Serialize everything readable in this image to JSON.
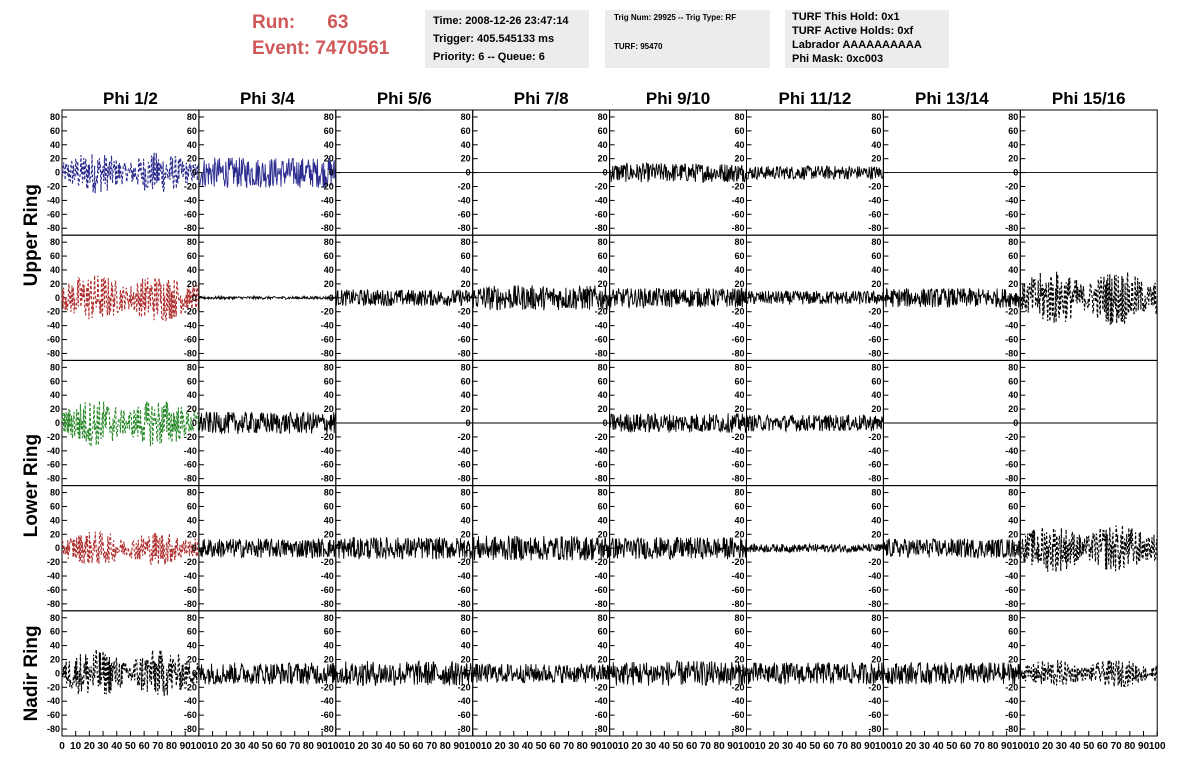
{
  "header": {
    "run_label": "Run:",
    "run_value": "63",
    "event_label": "Event:",
    "event_value": "7470561"
  },
  "info_time": [
    "Time: 2008-12-26 23:47:14",
    "Trigger: 405.545133 ms",
    "Priority: 6 -- Queue: 6"
  ],
  "info_trig": [
    "Trig Num: 29925 -- Trig Type: RF",
    "TURF: 95470"
  ],
  "info_turf": [
    "TURF This Hold: 0x1",
    "TURF Active Holds: 0xf",
    "Labrador AAAAAAAAAA",
    "Phi Mask: 0xc003"
  ],
  "colors": {
    "blue": "#2b2b8f",
    "red": "#b03030",
    "green": "#2a8a2a",
    "black": "#000000",
    "title_red": "#d05858",
    "info_bg": "#ececec"
  },
  "chart_data": {
    "type": "line",
    "column_titles": [
      "Phi 1/2",
      "Phi 3/4",
      "Phi 5/6",
      "Phi 7/8",
      "Phi 9/10",
      "Phi 11/12",
      "Phi 13/14",
      "Phi 15/16"
    ],
    "row_titles": [
      "Upper Ring",
      "Lower Ring",
      "Nadir Ring"
    ],
    "ylim": [
      -90,
      90
    ],
    "xlim": [
      0,
      100
    ],
    "yticks": [
      -80,
      -60,
      -40,
      -20,
      0,
      20,
      40,
      60,
      80
    ],
    "ytick_labels": [
      "-80",
      "-60",
      "-40",
      "-20",
      "0",
      "20",
      "40",
      "60",
      "80"
    ],
    "xtick_first_labels": [
      "0",
      "10",
      "20",
      "30",
      "40",
      "50",
      "60",
      "70",
      "80",
      "90",
      "100"
    ],
    "xtick_labels": [
      "10",
      "20",
      "30",
      "40",
      "50",
      "60",
      "70",
      "80",
      "90",
      "100"
    ],
    "panels": [
      [
        {
          "color": "blue",
          "dashed": true,
          "amp": 30
        },
        {
          "color": "blue",
          "dashed": false,
          "amp": 22
        },
        {
          "color": "black",
          "dashed": false,
          "amp": 0
        },
        {
          "color": "black",
          "dashed": false,
          "amp": 0
        },
        {
          "color": "black",
          "dashed": false,
          "amp": 14
        },
        {
          "color": "black",
          "dashed": false,
          "amp": 10
        },
        {
          "color": "black",
          "dashed": false,
          "amp": 0
        },
        {
          "color": "black",
          "dashed": false,
          "amp": 0
        }
      ],
      [
        {
          "color": "red",
          "dashed": true,
          "amp": 35
        },
        {
          "color": "black",
          "dashed": false,
          "amp": 2
        },
        {
          "color": "black",
          "dashed": false,
          "amp": 12
        },
        {
          "color": "black",
          "dashed": false,
          "amp": 18
        },
        {
          "color": "black",
          "dashed": false,
          "amp": 14
        },
        {
          "color": "black",
          "dashed": false,
          "amp": 10
        },
        {
          "color": "black",
          "dashed": false,
          "amp": 14
        },
        {
          "color": "black",
          "dashed": true,
          "amp": 40
        }
      ],
      [
        {
          "color": "green",
          "dashed": true,
          "amp": 35
        },
        {
          "color": "black",
          "dashed": false,
          "amp": 16
        },
        {
          "color": "black",
          "dashed": false,
          "amp": 0
        },
        {
          "color": "black",
          "dashed": false,
          "amp": 0
        },
        {
          "color": "black",
          "dashed": false,
          "amp": 14
        },
        {
          "color": "black",
          "dashed": false,
          "amp": 12
        },
        {
          "color": "black",
          "dashed": false,
          "amp": 0
        },
        {
          "color": "black",
          "dashed": false,
          "amp": 0
        }
      ],
      [
        {
          "color": "red",
          "dashed": true,
          "amp": 25
        },
        {
          "color": "black",
          "dashed": false,
          "amp": 14
        },
        {
          "color": "black",
          "dashed": false,
          "amp": 16
        },
        {
          "color": "black",
          "dashed": false,
          "amp": 18
        },
        {
          "color": "black",
          "dashed": false,
          "amp": 16
        },
        {
          "color": "black",
          "dashed": false,
          "amp": 6
        },
        {
          "color": "black",
          "dashed": false,
          "amp": 14
        },
        {
          "color": "black",
          "dashed": true,
          "amp": 35
        }
      ],
      [
        {
          "color": "black",
          "dashed": true,
          "amp": 35
        },
        {
          "color": "black",
          "dashed": false,
          "amp": 16
        },
        {
          "color": "black",
          "dashed": false,
          "amp": 18
        },
        {
          "color": "black",
          "dashed": false,
          "amp": 14
        },
        {
          "color": "black",
          "dashed": false,
          "amp": 18
        },
        {
          "color": "black",
          "dashed": false,
          "amp": 16
        },
        {
          "color": "black",
          "dashed": false,
          "amp": 16
        },
        {
          "color": "black",
          "dashed": true,
          "amp": 20
        }
      ]
    ]
  }
}
